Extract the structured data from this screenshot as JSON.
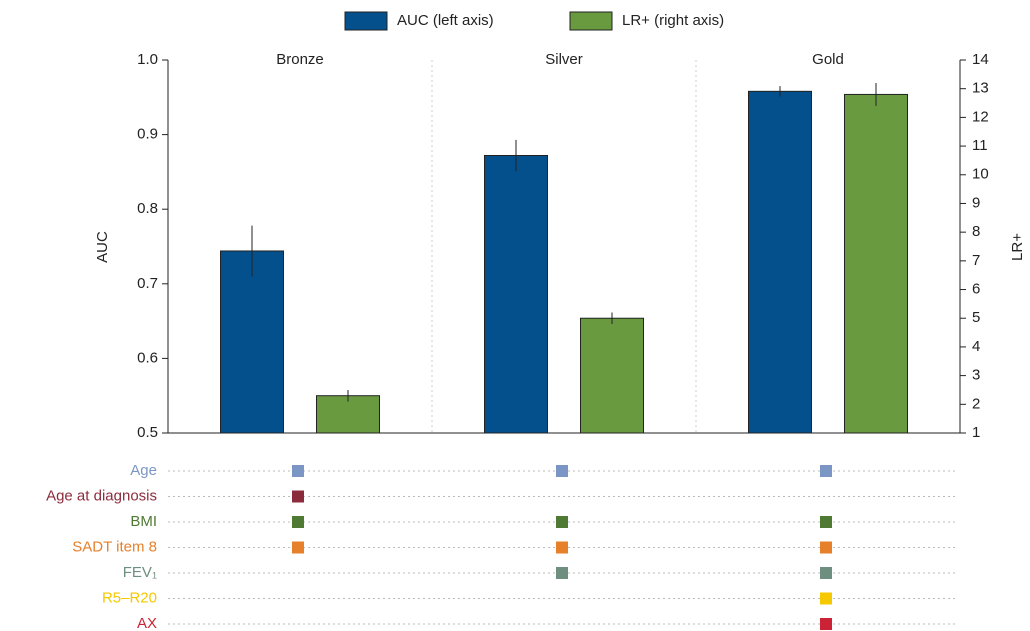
{
  "chart_data": {
    "type": "bar",
    "categories": [
      "Bronze",
      "Silver",
      "Gold"
    ],
    "y_label": "AUC",
    "y2_label": "LR+",
    "ylim": [
      0.5,
      1.0
    ],
    "yticks": [
      0.5,
      0.6,
      0.7,
      0.8,
      0.9,
      {
        "value": 1,
        "label": "1.0"
      }
    ],
    "y2lim": [
      1,
      14
    ],
    "y2ticks": [
      1,
      2,
      3,
      4,
      5,
      6,
      7,
      8,
      9,
      10,
      11,
      12,
      13,
      14
    ],
    "legend": "top",
    "series": [
      {
        "name": "AUC (left axis)",
        "color": "#03508c",
        "values": [
          0.744,
          0.872,
          0.958
        ],
        "errors": [
          0.034,
          0.021,
          0.007
        ]
      },
      {
        "name": "LR+ (right axis)",
        "color": "#6a9a40",
        "axis": "y2",
        "values": [
          2.3,
          5.0,
          12.8
        ],
        "errors": [
          0.2,
          0.2,
          0.4
        ]
      }
    ],
    "features": [
      {
        "label": "Age",
        "color": "#7b96c4",
        "present": [
          true,
          true,
          true
        ]
      },
      {
        "label": "Age at diagnosis",
        "color": "#8b2c3c",
        "present": [
          true,
          false,
          false
        ]
      },
      {
        "label": "BMI",
        "color": "#4f7a34",
        "present": [
          true,
          true,
          true
        ]
      },
      {
        "label": "SADT item 8",
        "color": "#e6802a",
        "present": [
          true,
          true,
          true
        ]
      },
      {
        "label": "FEV₁",
        "color": "#6e8f80",
        "present": [
          false,
          true,
          true
        ]
      },
      {
        "label": "R5–R20",
        "color": "#f5c800",
        "present": [
          false,
          false,
          true
        ]
      },
      {
        "label": "AX",
        "color": "#cc2235",
        "present": [
          false,
          false,
          true
        ]
      }
    ]
  }
}
